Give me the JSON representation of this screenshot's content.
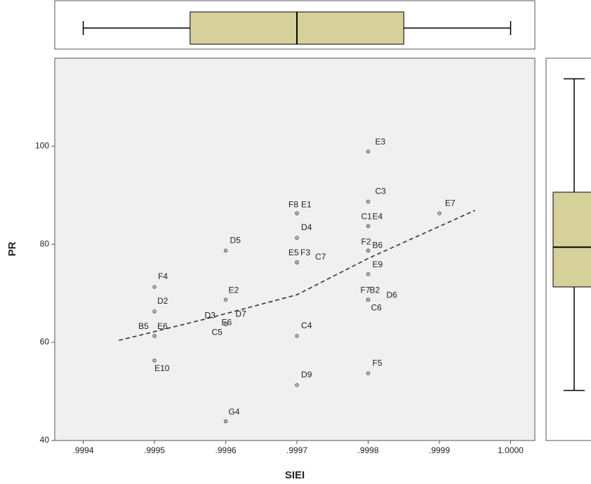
{
  "chart_data": {
    "type": "scatter",
    "x_label": "SIEI",
    "y_label": "PR",
    "xlim": [
      0.99936,
      1.000034
    ],
    "ylim": [
      40,
      117.9
    ],
    "xticks": [
      {
        "value": 0.9994,
        "label": ".9994"
      },
      {
        "value": 0.9995,
        "label": ".9995"
      },
      {
        "value": 0.9996,
        "label": ".9996"
      },
      {
        "value": 0.9997,
        "label": ".9997"
      },
      {
        "value": 0.9998,
        "label": ".9998"
      },
      {
        "value": 0.9999,
        "label": ".9999"
      },
      {
        "value": 1.0,
        "label": "1.0000"
      }
    ],
    "yticks": [
      40,
      60,
      80,
      100
    ],
    "point_labels": [
      "E3",
      "C3",
      "E7",
      "F8",
      "E1",
      "C1",
      "E4",
      "D4",
      "F2",
      "B6",
      "D5",
      "E5",
      "F3",
      "C7",
      "E9",
      "F4",
      "F7",
      "B2",
      "D6",
      "C6",
      "E2",
      "D2",
      "D3",
      "E6",
      "D7",
      "C5",
      "B5",
      "E6",
      "C4",
      "E10",
      "F5",
      "D9",
      "G4"
    ],
    "x": [
      0.9998,
      0.9998,
      0.9999,
      0.9997,
      0.9997,
      0.9998,
      0.9998,
      0.9997,
      0.9998,
      0.9998,
      0.9996,
      0.9997,
      0.9997,
      0.9997,
      0.9998,
      0.9995,
      0.9998,
      0.9998,
      0.9998,
      0.9998,
      0.9996,
      0.9995,
      0.9996,
      0.9996,
      0.9996,
      0.9996,
      0.9995,
      0.9995,
      0.9997,
      0.9995,
      0.9998,
      0.9997,
      0.9996
    ],
    "y": [
      98.9,
      88.7,
      86.3,
      86.3,
      86.3,
      83.7,
      83.7,
      81.3,
      78.7,
      78.7,
      78.7,
      76.3,
      76.3,
      76.3,
      73.9,
      71.3,
      68.7,
      68.7,
      68.7,
      68.7,
      68.7,
      66.3,
      63.7,
      63.7,
      63.7,
      63.7,
      61.3,
      61.3,
      61.3,
      56.3,
      53.7,
      51.3,
      43.9
    ],
    "fit_line": {
      "x": [
        0.99945,
        0.99957,
        0.9997,
        0.9998,
        0.99995
      ],
      "y": [
        60.4,
        64.7,
        69.7,
        77.1,
        86.9
      ]
    },
    "x_boxplot": {
      "min": 0.9994,
      "q1": 0.99955,
      "median": 0.9997,
      "q3": 0.99985,
      "max": 1.0
    },
    "y_boxplot": {
      "min": 50.2,
      "q1": 71.3,
      "median": 79.4,
      "q3": 90.6,
      "max": 113.7
    },
    "box_color": "#d6d19b",
    "background": "#f0f0f0"
  }
}
